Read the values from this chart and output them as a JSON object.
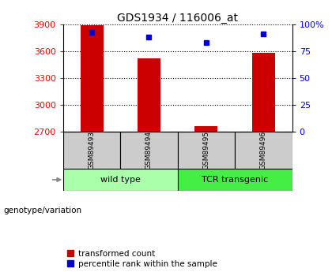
{
  "title": "GDS1934 / 116006_at",
  "samples": [
    "GSM89493",
    "GSM89494",
    "GSM89495",
    "GSM89496"
  ],
  "transformed_counts": [
    3893,
    3520,
    2760,
    3580
  ],
  "percentile_ranks": [
    93,
    88,
    83,
    91
  ],
  "ylim_left": [
    2700,
    3900
  ],
  "ylim_right": [
    0,
    100
  ],
  "yticks_left": [
    2700,
    3000,
    3300,
    3600,
    3900
  ],
  "yticks_right": [
    0,
    25,
    50,
    75,
    100
  ],
  "ytick_labels_right": [
    "0",
    "25",
    "50",
    "75",
    "100%"
  ],
  "bar_color": "#cc0000",
  "marker_color": "#0000cc",
  "bar_width": 0.4,
  "groups": [
    {
      "label": "wild type",
      "samples": [
        0,
        1
      ],
      "color": "#aaffaa"
    },
    {
      "label": "TCR transgenic",
      "samples": [
        2,
        3
      ],
      "color": "#44ee44"
    }
  ],
  "sample_box_color": "#cccccc",
  "genotype_label": "genotype/variation",
  "legend_items": [
    {
      "label": "transformed count",
      "color": "#cc0000"
    },
    {
      "label": "percentile rank within the sample",
      "color": "#0000cc"
    }
  ],
  "title_fontsize": 10,
  "tick_fontsize": 8,
  "sample_label_fontsize": 6.5,
  "group_label_fontsize": 8,
  "legend_fontsize": 7.5
}
